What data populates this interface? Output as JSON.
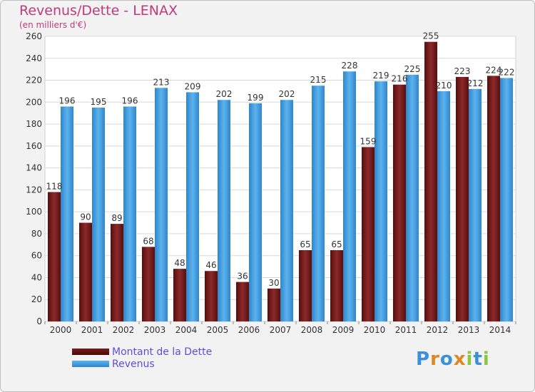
{
  "header": {
    "title": "Revenus/Dette - LENAX",
    "subtitle": "(en milliers d'€)"
  },
  "legend": {
    "items": [
      {
        "label": "Montant de la Dette",
        "color": "#7a1c1c"
      },
      {
        "label": "Revenus",
        "color": "#4ea6e6"
      }
    ]
  },
  "logo": {
    "letters": [
      "P",
      "r",
      "o",
      "x",
      "i",
      "t",
      "i"
    ],
    "colors": [
      "#3d8fd6",
      "#e0862a",
      "#3d8fd6",
      "#e0862a",
      "#8cc63f",
      "#3d8fd6",
      "#8cc63f"
    ]
  },
  "chart_data": {
    "type": "bar",
    "title": "Revenus/Dette - LENAX",
    "subtitle": "(en milliers d'€)",
    "categories": [
      "2000",
      "2001",
      "2002",
      "2003",
      "2004",
      "2005",
      "2006",
      "2007",
      "2008",
      "2009",
      "2010",
      "2011",
      "2012",
      "2013",
      "2014"
    ],
    "series": [
      {
        "name": "Montant de la Dette",
        "color": "#7a1c1c",
        "values": [
          118,
          90,
          89,
          68,
          48,
          46,
          36,
          30,
          65,
          65,
          159,
          216,
          255,
          223,
          224
        ]
      },
      {
        "name": "Revenus",
        "color": "#4ea6e6",
        "values": [
          196,
          195,
          196,
          213,
          209,
          202,
          199,
          202,
          215,
          228,
          219,
          225,
          210,
          212,
          222
        ]
      }
    ],
    "ylim": [
      0,
      260
    ],
    "yticks": [
      0,
      20,
      40,
      60,
      80,
      100,
      120,
      140,
      160,
      180,
      200,
      220,
      240,
      260
    ],
    "grid": true,
    "legend_position": "bottom-left"
  }
}
